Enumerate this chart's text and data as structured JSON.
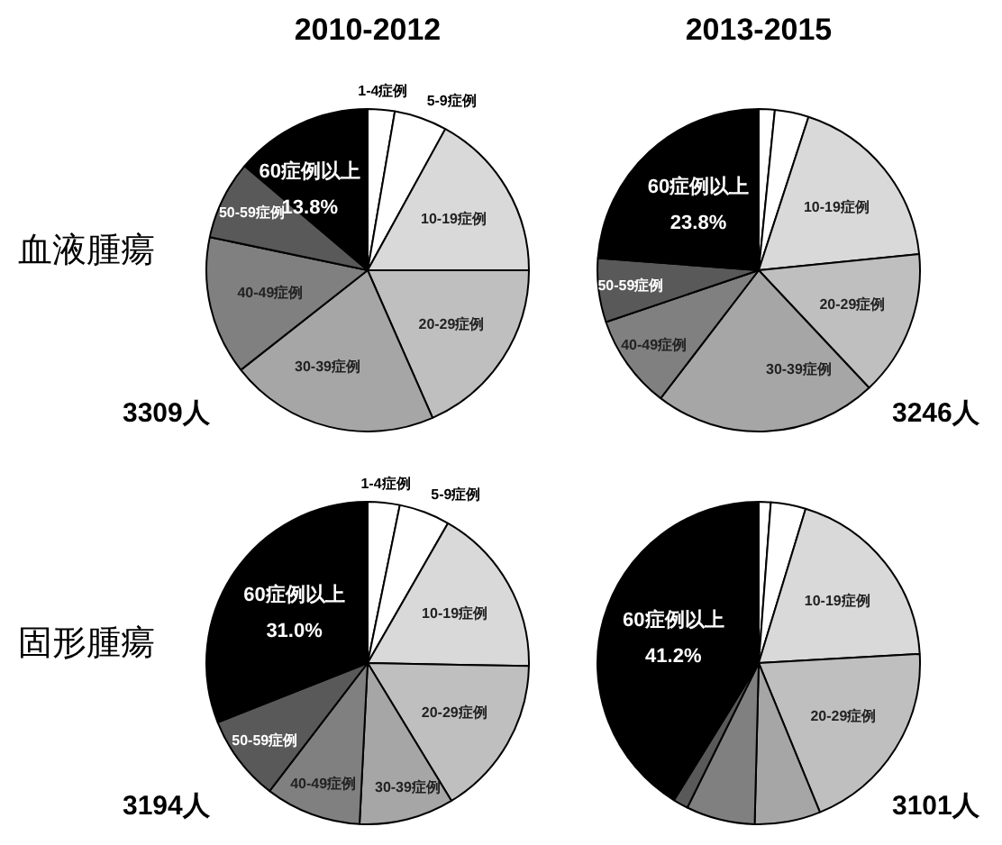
{
  "chart_data": [
    {
      "type": "pie",
      "title": "2010-2012",
      "ylabel": "血液腫瘍",
      "annotations": [
        "3309人"
      ],
      "legend": false,
      "categories": [
        "1-4症例",
        "5-9症例",
        "10-19症例",
        "20-29症例",
        "30-39症例",
        "40-49症例",
        "50-59症例",
        "60症例以上"
      ],
      "values": [
        2.7,
        5.3,
        17.0,
        18.4,
        21.0,
        13.9,
        7.9,
        13.8
      ],
      "value_labels": [
        null,
        null,
        null,
        null,
        null,
        null,
        null,
        "13.8%"
      ],
      "colors": [
        "#ffffff",
        "#ffffff",
        "#d9d9d9",
        "#bfbfbf",
        "#a6a6a6",
        "#808080",
        "#595959",
        "#000000"
      ]
    },
    {
      "type": "pie",
      "title": "2013-2015",
      "annotations": [
        "3246人"
      ],
      "legend": false,
      "categories": [
        null,
        null,
        "10-19症例",
        "20-29症例",
        "30-39症例",
        "40-49症例",
        "50-59症例",
        "60症例以上"
      ],
      "values": [
        1.6,
        3.4,
        18.4,
        14.6,
        22.4,
        9.4,
        6.4,
        23.8
      ],
      "value_labels": [
        null,
        null,
        null,
        null,
        null,
        null,
        null,
        "23.8%"
      ],
      "colors": [
        "#ffffff",
        "#ffffff",
        "#d9d9d9",
        "#bfbfbf",
        "#a6a6a6",
        "#808080",
        "#595959",
        "#000000"
      ]
    },
    {
      "type": "pie",
      "ylabel": "固形腫瘍",
      "annotations": [
        "3194人"
      ],
      "legend": false,
      "categories": [
        "1-4症例",
        "5-9症例",
        "10-19症例",
        "20-29症例",
        "30-39症例",
        "40-49症例",
        "50-59症例",
        "60症例以上"
      ],
      "values": [
        3.2,
        5.1,
        17.0,
        16.0,
        9.5,
        9.6,
        8.6,
        31.0
      ],
      "value_labels": [
        null,
        null,
        null,
        null,
        null,
        null,
        null,
        "31.0%"
      ],
      "colors": [
        "#ffffff",
        "#ffffff",
        "#d9d9d9",
        "#bfbfbf",
        "#a6a6a6",
        "#808080",
        "#595959",
        "#000000"
      ]
    },
    {
      "type": "pie",
      "annotations": [
        "3101人"
      ],
      "legend": false,
      "categories": [
        null,
        null,
        "10-19症例",
        "20-29症例",
        null,
        null,
        null,
        "60症例以上"
      ],
      "values": [
        1.2,
        3.5,
        19.4,
        19.7,
        6.6,
        6.9,
        1.5,
        41.2
      ],
      "value_labels": [
        null,
        null,
        null,
        null,
        null,
        null,
        null,
        "41.2%"
      ],
      "colors": [
        "#ffffff",
        "#ffffff",
        "#d9d9d9",
        "#bfbfbf",
        "#a6a6a6",
        "#808080",
        "#595959",
        "#000000"
      ]
    }
  ]
}
